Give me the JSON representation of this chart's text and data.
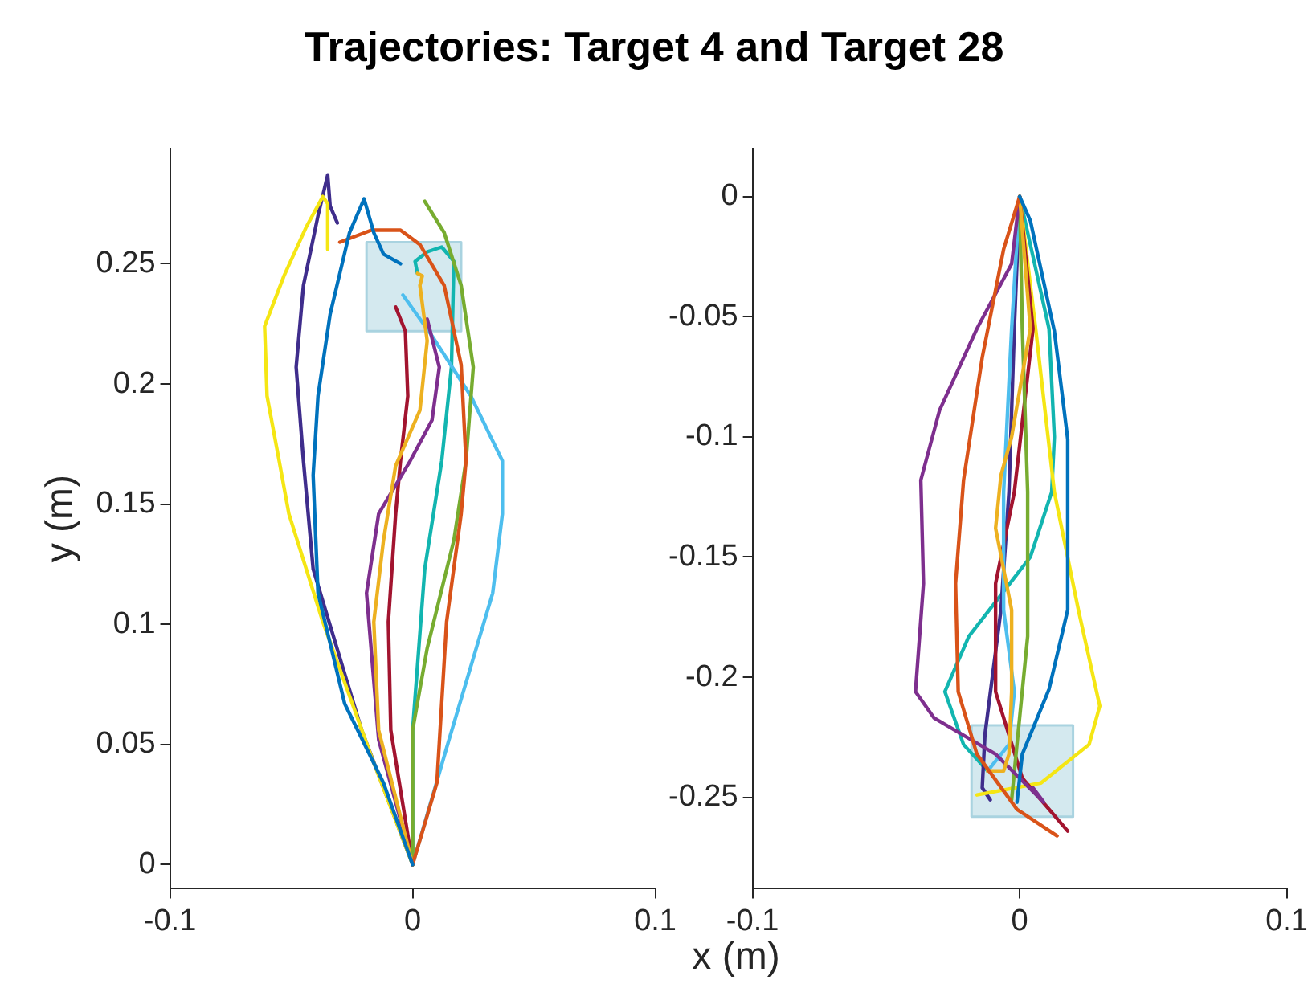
{
  "chart_data": [
    {
      "type": "line",
      "title": "Trajectories: Target 4 and Target 28",
      "xlabel": "x (m)",
      "ylabel": "y (m)",
      "xlim": [
        -0.1,
        0.1
      ],
      "xticks": [
        -0.1,
        0,
        0.1
      ],
      "ylim": [
        -0.01,
        0.298
      ],
      "yticks": [
        0,
        0.05,
        0.1,
        0.15,
        0.2,
        0.25
      ],
      "grid": false,
      "legend": false,
      "marker": "none",
      "series": [
        {
          "type": "area",
          "color": "#a9d3e0",
          "x": [
            -0.019,
            0.02,
            0.02,
            -0.019,
            -0.019
          ],
          "values": [
            0.222,
            0.222,
            0.259,
            0.259,
            0.222
          ]
        },
        {
          "color": "#0072bd",
          "x": [
            0,
            -0.012,
            -0.028,
            -0.039,
            -0.041,
            -0.039,
            -0.034,
            -0.026,
            -0.02,
            -0.016,
            -0.012,
            -0.005
          ],
          "values": [
            0,
            0.034,
            0.067,
            0.113,
            0.162,
            0.195,
            0.229,
            0.263,
            0.277,
            0.263,
            0.254,
            0.25
          ]
        },
        {
          "color": "#d95319",
          "x": [
            0,
            0.01,
            0.014,
            0.02,
            0.022,
            0.02,
            0.013,
            0.003,
            -0.005,
            -0.017,
            -0.03
          ],
          "values": [
            0,
            0.034,
            0.101,
            0.146,
            0.168,
            0.208,
            0.241,
            0.258,
            0.264,
            0.264,
            0.259
          ]
        },
        {
          "color": "#edb120",
          "x": [
            0,
            -0.014,
            -0.016,
            -0.012,
            -0.007,
            0.003,
            0.006,
            0.003,
            0.004,
            0.002
          ],
          "values": [
            0,
            0.056,
            0.101,
            0.135,
            0.166,
            0.189,
            0.218,
            0.241,
            0.245,
            0.246
          ]
        },
        {
          "color": "#7e2f8e",
          "x": [
            0,
            -0.014,
            -0.019,
            -0.014,
            -0.001,
            0.008,
            0.011,
            0.006
          ],
          "values": [
            0,
            0.052,
            0.113,
            0.146,
            0.168,
            0.185,
            0.207,
            0.227
          ]
        },
        {
          "color": "#77ac30",
          "x": [
            0,
            0,
            0.006,
            0.017,
            0.022,
            0.025,
            0.02,
            0.013,
            0.005
          ],
          "values": [
            0,
            0.056,
            0.09,
            0.135,
            0.168,
            0.207,
            0.241,
            0.263,
            0.276
          ]
        },
        {
          "color": "#4dbeee",
          "x": [
            0,
            0.015,
            0.033,
            0.037,
            0.037,
            0.024,
            0.008,
            -0.004
          ],
          "values": [
            0,
            0.052,
            0.113,
            0.146,
            0.168,
            0.195,
            0.22,
            0.237
          ]
        },
        {
          "color": "#a2142f",
          "x": [
            0,
            -0.009,
            -0.01,
            -0.007,
            -0.005,
            -0.002,
            -0.003,
            -0.007
          ],
          "values": [
            0,
            0.056,
            0.101,
            0.146,
            0.168,
            0.195,
            0.222,
            0.232
          ]
        },
        {
          "color": "#f5e614",
          "x": [
            0,
            -0.017,
            -0.037,
            -0.051,
            -0.055,
            -0.06,
            -0.061,
            -0.053,
            -0.044,
            -0.037,
            -0.035,
            -0.035
          ],
          "values": [
            0,
            0.045,
            0.101,
            0.146,
            0.168,
            0.195,
            0.224,
            0.245,
            0.265,
            0.278,
            0.275,
            0.256
          ]
        },
        {
          "color": "#3f2d8c",
          "x": [
            0,
            -0.021,
            -0.041,
            -0.045,
            -0.048,
            -0.045,
            -0.039,
            -0.035,
            -0.034,
            -0.031
          ],
          "values": [
            0,
            0.056,
            0.123,
            0.168,
            0.207,
            0.241,
            0.27,
            0.287,
            0.274,
            0.267
          ]
        },
        {
          "color": "#12b5b0",
          "x": [
            0,
            0,
            0.005,
            0.012,
            0.016,
            0.017,
            0.012,
            0.006,
            0.001,
            0.002
          ],
          "values": [
            0,
            0.056,
            0.123,
            0.168,
            0.207,
            0.251,
            0.257,
            0.255,
            0.251,
            0.246
          ]
        }
      ]
    },
    {
      "type": "line",
      "xlim": [
        -0.1,
        0.1
      ],
      "xticks": [
        -0.1,
        0,
        0.1
      ],
      "ylim": [
        -0.288,
        0.02
      ],
      "yticks": [
        -0.25,
        -0.2,
        -0.15,
        -0.1,
        -0.05,
        0
      ],
      "grid": false,
      "legend": false,
      "marker": "none",
      "series": [
        {
          "type": "area",
          "color": "#a9d3e0",
          "x": [
            -0.018,
            0.02,
            0.02,
            -0.018,
            -0.018
          ],
          "values": [
            -0.258,
            -0.258,
            -0.22,
            -0.22,
            -0.258
          ]
        },
        {
          "color": "#0072bd",
          "x": [
            0,
            0.004,
            0.013,
            0.018,
            0.018,
            0.011,
            0.001,
            -0.001
          ],
          "values": [
            0,
            -0.01,
            -0.056,
            -0.101,
            -0.172,
            -0.205,
            -0.232,
            -0.252
          ]
        },
        {
          "color": "#d95319",
          "x": [
            0,
            -0.006,
            -0.014,
            -0.021,
            -0.024,
            -0.023,
            -0.016,
            -0.001,
            0.014
          ],
          "values": [
            0,
            -0.022,
            -0.067,
            -0.118,
            -0.161,
            -0.206,
            -0.232,
            -0.255,
            -0.266
          ]
        },
        {
          "color": "#edb120",
          "x": [
            0,
            0.004,
            -0.003,
            -0.007,
            -0.009,
            -0.003,
            -0.003,
            -0.004,
            -0.006,
            -0.012
          ],
          "values": [
            0,
            -0.055,
            -0.1,
            -0.116,
            -0.138,
            -0.172,
            -0.206,
            -0.232,
            -0.239,
            -0.239
          ]
        },
        {
          "color": "#7e2f8e",
          "x": [
            0,
            -0.003,
            -0.016,
            -0.03,
            -0.037,
            -0.036,
            -0.039,
            -0.032,
            -0.009,
            0.009,
            0.005
          ],
          "values": [
            0,
            -0.028,
            -0.055,
            -0.089,
            -0.118,
            -0.161,
            -0.206,
            -0.217,
            -0.232,
            -0.252,
            -0.246
          ]
        },
        {
          "color": "#77ac30",
          "x": [
            0,
            0.001,
            0.003,
            0.003,
            -0.001,
            -0.003
          ],
          "values": [
            0,
            -0.055,
            -0.123,
            -0.183,
            -0.228,
            -0.251
          ]
        },
        {
          "color": "#4dbeee",
          "x": [
            0,
            -0.003,
            -0.006,
            -0.006,
            -0.002,
            -0.004,
            -0.012
          ],
          "values": [
            0,
            -0.055,
            -0.123,
            -0.172,
            -0.206,
            -0.228,
            -0.239
          ]
        },
        {
          "color": "#a2142f",
          "x": [
            0,
            0.005,
            -0.002,
            -0.009,
            -0.009,
            0.001,
            0.018
          ],
          "values": [
            0,
            -0.055,
            -0.123,
            -0.161,
            -0.206,
            -0.242,
            -0.264
          ]
        },
        {
          "color": "#f5e614",
          "x": [
            0,
            0.006,
            0.013,
            0.022,
            0.03,
            0.026,
            0.008,
            -0.016
          ],
          "values": [
            0,
            -0.055,
            -0.123,
            -0.172,
            -0.212,
            -0.228,
            -0.244,
            -0.249
          ]
        },
        {
          "color": "#3f2d8c",
          "x": [
            0,
            -0.002,
            -0.004,
            -0.007,
            -0.013,
            -0.014,
            -0.011
          ],
          "values": [
            0,
            -0.055,
            -0.123,
            -0.172,
            -0.224,
            -0.246,
            -0.251
          ]
        },
        {
          "color": "#12b5b0",
          "x": [
            0,
            0.011,
            0.013,
            0.012,
            0.004,
            -0.019,
            -0.028,
            -0.021,
            -0.012
          ],
          "values": [
            0,
            -0.055,
            -0.1,
            -0.123,
            -0.15,
            -0.183,
            -0.206,
            -0.228,
            -0.239
          ]
        }
      ]
    }
  ]
}
